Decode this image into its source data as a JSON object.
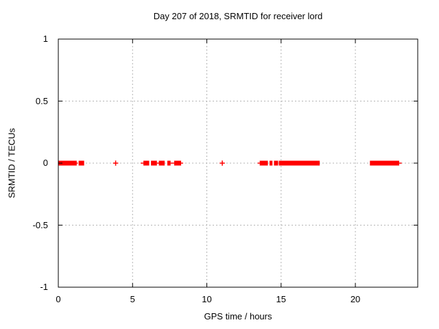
{
  "window": {
    "background_color": "#ffffff",
    "text_color": "#000000"
  },
  "chart_data": {
    "type": "scatter",
    "title": "Day 207 of 2018, SRMTID for receiver lord",
    "xlabel": "GPS time / hours",
    "ylabel": "SRMTID / TECUs",
    "xlim": [
      0,
      24.2
    ],
    "ylim": [
      -1,
      1
    ],
    "xticks": [
      0,
      5,
      10,
      15,
      20
    ],
    "xtick_labels": [
      "0",
      "5",
      "10",
      "15",
      "20"
    ],
    "yticks": [
      1,
      0.5,
      0,
      -0.5,
      -1
    ],
    "ytick_labels": [
      "1",
      "0.5",
      "0",
      "-0.5",
      "-1"
    ],
    "grid": true,
    "grid_style": "dashed",
    "grid_color": "#b3b3b3",
    "axis_color": "#000000",
    "legend_position": "none",
    "marker": "plus",
    "marker_color": "#ff0000",
    "series_name": "SRMTID",
    "value_at_all_points": 0,
    "dense_segments_hours": [
      [
        0.0,
        1.24
      ],
      [
        1.37,
        1.74
      ],
      [
        5.73,
        6.12
      ],
      [
        6.24,
        6.64
      ],
      [
        6.77,
        7.16
      ],
      [
        7.34,
        7.56
      ],
      [
        7.8,
        8.27
      ],
      [
        13.56,
        14.11
      ],
      [
        14.22,
        14.42
      ],
      [
        14.52,
        14.8
      ],
      [
        14.85,
        17.6
      ],
      [
        20.98,
        22.95
      ]
    ],
    "sparse_segments_hours": [
      [
        1.24,
        1.32
      ],
      [
        5.55,
        5.73
      ],
      [
        6.64,
        6.77
      ],
      [
        7.56,
        7.8
      ],
      [
        8.27,
        8.4
      ],
      [
        13.42,
        13.56
      ],
      [
        22.95,
        23.12
      ]
    ],
    "isolated_points_hours": [
      3.86,
      11.04
    ]
  }
}
